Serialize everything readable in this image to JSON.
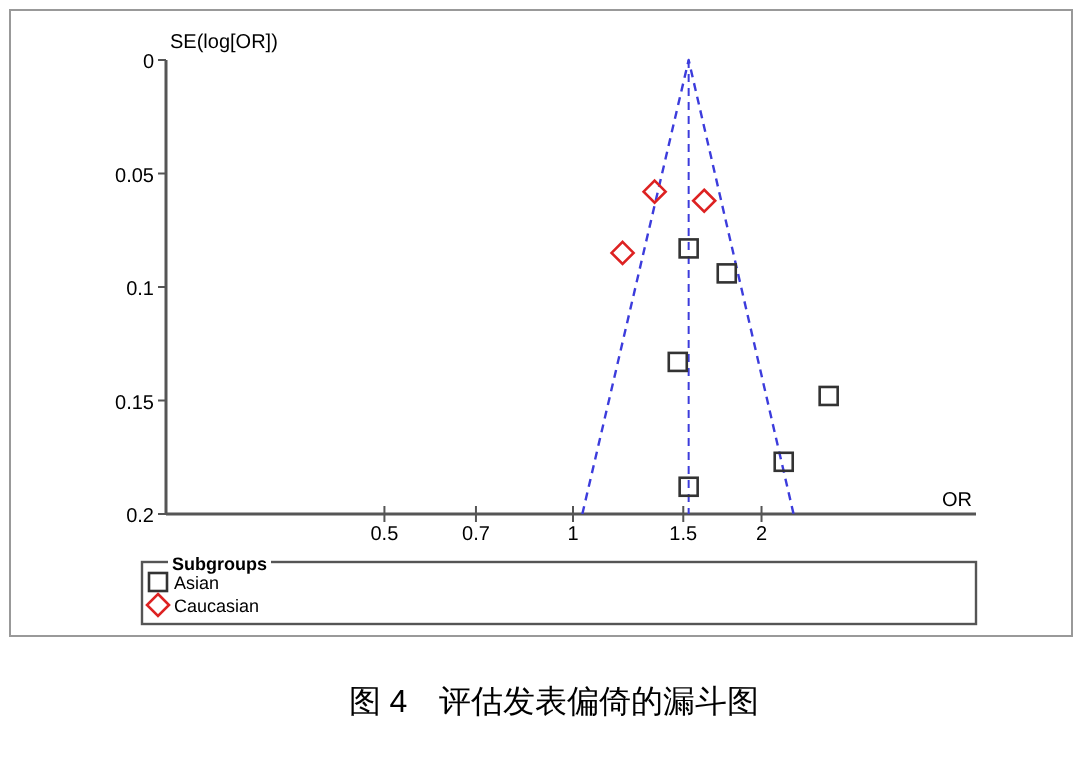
{
  "chart_data": {
    "type": "scatter",
    "ylabel": "SE(log[OR])",
    "xlabel": "OR",
    "legend_title": "Subgroups",
    "legend": "bottom",
    "grid": false,
    "log": "x",
    "xlim": [
      0.224,
      4.4
    ],
    "xticks": [
      0.5,
      0.7,
      1,
      1.5,
      2
    ],
    "ylim": [
      0.2,
      0
    ],
    "yticks": [
      0,
      0.05,
      0.1,
      0.15,
      0.2
    ],
    "series": [
      {
        "name": "Asian",
        "marker": "square",
        "color": "#333333",
        "x": [
          1.53,
          1.76,
          1.47,
          2.56,
          2.17,
          1.53
        ],
        "values": [
          0.083,
          0.094,
          0.133,
          0.148,
          0.177,
          0.188
        ]
      },
      {
        "name": "Caucasian",
        "marker": "diamond",
        "color": "#dd2222",
        "x": [
          1.35,
          1.62,
          1.2
        ],
        "values": [
          0.058,
          0.062,
          0.085
        ]
      },
      {
        "type": "line",
        "line_style": "dashed",
        "color": "#3c3cdc",
        "x": [
          1.035,
          1.53,
          2.25
        ],
        "values": [
          0.2,
          0,
          0.2
        ]
      }
    ],
    "ref_lines": [
      {
        "axis": "x",
        "value": 1.53,
        "color": "#3c3cdc",
        "line_style": "dashed"
      }
    ],
    "annotations": [
      "图 4　评估发表偏倚的漏斗图"
    ]
  }
}
